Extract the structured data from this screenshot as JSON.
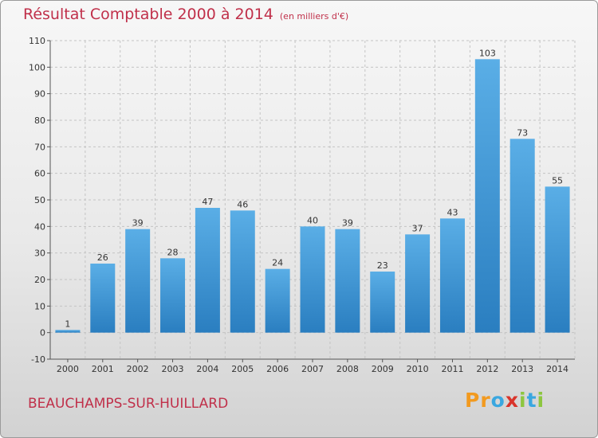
{
  "title": "Résultat Comptable 2000 à 2014",
  "unit": "(en milliers d'€)",
  "place_name": "BEAUCHAMPS-SUR-HUILLARD",
  "logo": {
    "letters": [
      "P",
      "r",
      "o",
      "x",
      "i",
      "t",
      "i"
    ],
    "colors": [
      "#f29a1f",
      "#f29a1f",
      "#3aa7e0",
      "#d9342b",
      "#8dc63f",
      "#3aa7e0",
      "#8dc63f"
    ]
  },
  "colors": {
    "bar_top": "#5aaee6",
    "bar_bottom": "#2a7ec0",
    "grid": "#c4c4c4",
    "title": "#c0304a"
  },
  "chart_data": {
    "type": "bar",
    "title": "Résultat Comptable 2000 à 2014",
    "xlabel": "",
    "ylabel": "",
    "categories": [
      "2000",
      "2001",
      "2002",
      "2003",
      "2004",
      "2005",
      "2006",
      "2007",
      "2008",
      "2009",
      "2010",
      "2011",
      "2012",
      "2013",
      "2014"
    ],
    "values": [
      1,
      26,
      39,
      28,
      47,
      46,
      24,
      40,
      39,
      23,
      37,
      43,
      103,
      73,
      55
    ],
    "ylim": [
      -10,
      110
    ],
    "yticks": [
      -10,
      0,
      10,
      20,
      30,
      40,
      50,
      60,
      70,
      80,
      90,
      100,
      110
    ],
    "grid": "horizontal dashed"
  }
}
